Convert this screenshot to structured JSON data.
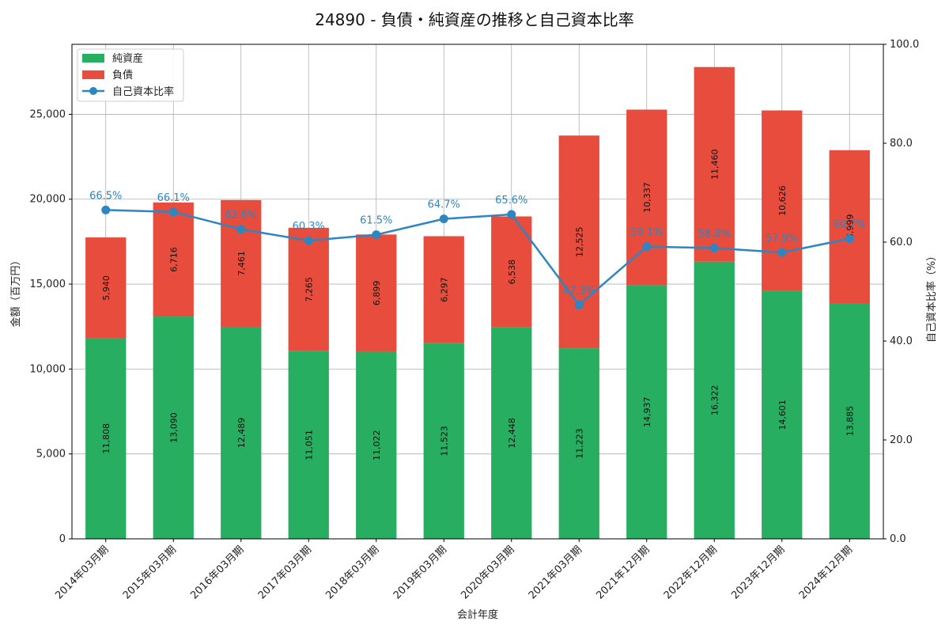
{
  "chart_data": {
    "type": "bar",
    "title": "24890 - 負債・純資産の推移と自己資本比率",
    "xlabel": "会計年度",
    "ylabel": "金額（百万円）",
    "y2label": "自己資本比率（%）",
    "categories": [
      "2014年03月期",
      "2015年03月期",
      "2016年03月期",
      "2017年03月期",
      "2018年03月期",
      "2019年03月期",
      "2020年03月期",
      "2021年03月期",
      "2021年12月期",
      "2022年12月期",
      "2023年12月期",
      "2024年12月期"
    ],
    "series": [
      {
        "name": "純資産",
        "kind": "bar",
        "color": "#27ae60",
        "values": [
          11808,
          13090,
          12489,
          11051,
          11022,
          11523,
          12448,
          11223,
          14937,
          16322,
          14601,
          13885
        ],
        "labels": [
          "11,808",
          "13,090",
          "12,489",
          "11,051",
          "11,022",
          "11,523",
          "12,448",
          "11,223",
          "14,937",
          "16,322",
          "14,601",
          "13,885"
        ]
      },
      {
        "name": "負債",
        "kind": "bar",
        "color": "#e74c3c",
        "values": [
          5940,
          6716,
          7461,
          7265,
          6899,
          6297,
          6538,
          12525,
          10337,
          11460,
          10626,
          8999
        ],
        "labels": [
          "5,940",
          "6,716",
          "7,461",
          "7,265",
          "6,899",
          "6,297",
          "6,538",
          "12,525",
          "10,337",
          "11,460",
          "10,626",
          "8,999"
        ]
      },
      {
        "name": "自己資本比率",
        "kind": "line",
        "axis": "right",
        "color": "#2e86c1",
        "values": [
          66.5,
          66.1,
          62.6,
          60.3,
          61.5,
          64.7,
          65.6,
          47.3,
          59.1,
          58.8,
          57.9,
          60.7
        ],
        "labels": [
          "66.5%",
          "66.1%",
          "62.6%",
          "60.3%",
          "61.5%",
          "64.7%",
          "65.6%",
          "47.3%",
          "59.1%",
          "58.8%",
          "57.9%",
          "60.7%"
        ]
      }
    ],
    "ylim": [
      0,
      29120
    ],
    "yticks": [
      0,
      5000,
      10000,
      15000,
      20000,
      25000
    ],
    "ytick_labels": [
      "0",
      "5,000",
      "10,000",
      "15,000",
      "20,000",
      "25,000"
    ],
    "y2lim": [
      0,
      100
    ],
    "y2ticks": [
      0,
      20,
      40,
      60,
      80,
      100
    ],
    "y2tick_labels": [
      "0.0",
      "20.0",
      "40.0",
      "60.0",
      "80.0",
      "100.0"
    ],
    "grid": true,
    "legend_position": "top-left"
  }
}
